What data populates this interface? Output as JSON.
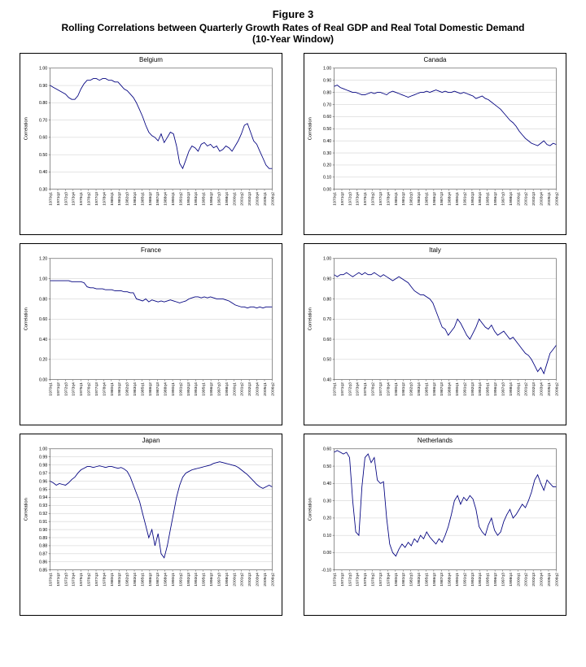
{
  "figure": {
    "title": "Figure 3",
    "subtitle": "Rolling Correlations between Quarterly Growth Rates of Real GDP and Real Total Domestic Demand",
    "window_note": "(10-Year Window)"
  },
  "colors": {
    "series_line": "#00007f",
    "gridline": "#c8c8c8",
    "plot_frame": "#404040"
  },
  "shared_axes": {
    "xlabel": "",
    "x_tick_labels": [
      "1970q1",
      "1971q2",
      "1972q3",
      "1973q4",
      "1975q1",
      "1976q2",
      "1977q3",
      "1978q4",
      "1980q1",
      "1981q2",
      "1982q3",
      "1983q4",
      "1985q1",
      "1986q2",
      "1987q3",
      "1988q4",
      "1990q1",
      "1991q2",
      "1992q3",
      "1993q4",
      "1995q1",
      "1996q2",
      "1997q3",
      "1998q4",
      "2000q1",
      "2001q2",
      "2002q3",
      "2003q4",
      "2005q1",
      "2006q2"
    ]
  },
  "chart_data": [
    {
      "type": "line",
      "title": "Belgium",
      "ylabel": "Correlation",
      "ylim": [
        0.3,
        1.0
      ],
      "ytick_step": 0.1,
      "grid": true,
      "values": [
        0.9,
        0.89,
        0.88,
        0.87,
        0.86,
        0.85,
        0.83,
        0.82,
        0.82,
        0.84,
        0.88,
        0.91,
        0.93,
        0.93,
        0.94,
        0.94,
        0.93,
        0.94,
        0.94,
        0.93,
        0.93,
        0.92,
        0.92,
        0.9,
        0.88,
        0.87,
        0.85,
        0.83,
        0.8,
        0.76,
        0.72,
        0.67,
        0.63,
        0.61,
        0.6,
        0.58,
        0.62,
        0.57,
        0.6,
        0.63,
        0.62,
        0.55,
        0.45,
        0.42,
        0.47,
        0.52,
        0.55,
        0.54,
        0.52,
        0.56,
        0.57,
        0.55,
        0.56,
        0.54,
        0.55,
        0.52,
        0.53,
        0.55,
        0.54,
        0.52,
        0.55,
        0.58,
        0.62,
        0.67,
        0.68,
        0.63,
        0.58,
        0.56,
        0.52,
        0.48,
        0.44,
        0.42,
        0.42
      ]
    },
    {
      "type": "line",
      "title": "Canada",
      "ylabel": "Correlation",
      "ylim": [
        0.0,
        1.0
      ],
      "ytick_step": 0.1,
      "grid": true,
      "values": [
        0.85,
        0.86,
        0.84,
        0.83,
        0.82,
        0.81,
        0.8,
        0.8,
        0.79,
        0.78,
        0.78,
        0.79,
        0.8,
        0.79,
        0.8,
        0.8,
        0.79,
        0.78,
        0.8,
        0.81,
        0.8,
        0.79,
        0.78,
        0.77,
        0.76,
        0.77,
        0.78,
        0.79,
        0.8,
        0.8,
        0.81,
        0.8,
        0.81,
        0.82,
        0.81,
        0.8,
        0.81,
        0.8,
        0.8,
        0.81,
        0.8,
        0.79,
        0.8,
        0.79,
        0.78,
        0.77,
        0.75,
        0.76,
        0.77,
        0.75,
        0.74,
        0.72,
        0.7,
        0.68,
        0.66,
        0.63,
        0.6,
        0.57,
        0.55,
        0.52,
        0.48,
        0.45,
        0.42,
        0.4,
        0.38,
        0.37,
        0.36,
        0.38,
        0.4,
        0.37,
        0.36,
        0.38,
        0.37
      ]
    },
    {
      "type": "line",
      "title": "France",
      "ylabel": "Correlation",
      "ylim": [
        0.0,
        1.2
      ],
      "ytick_step": 0.2,
      "grid": true,
      "values": [
        0.98,
        0.98,
        0.98,
        0.98,
        0.98,
        0.98,
        0.98,
        0.97,
        0.97,
        0.97,
        0.97,
        0.96,
        0.92,
        0.91,
        0.91,
        0.9,
        0.9,
        0.9,
        0.89,
        0.89,
        0.89,
        0.88,
        0.88,
        0.88,
        0.87,
        0.87,
        0.86,
        0.86,
        0.8,
        0.79,
        0.78,
        0.8,
        0.77,
        0.79,
        0.78,
        0.77,
        0.78,
        0.77,
        0.78,
        0.79,
        0.78,
        0.77,
        0.76,
        0.77,
        0.78,
        0.8,
        0.81,
        0.82,
        0.82,
        0.81,
        0.82,
        0.81,
        0.82,
        0.81,
        0.8,
        0.8,
        0.8,
        0.79,
        0.78,
        0.76,
        0.74,
        0.73,
        0.72,
        0.72,
        0.71,
        0.72,
        0.72,
        0.71,
        0.72,
        0.71,
        0.72,
        0.72,
        0.72
      ]
    },
    {
      "type": "line",
      "title": "Italy",
      "ylabel": "Correlation",
      "ylim": [
        0.4,
        1.0
      ],
      "ytick_step": 0.1,
      "grid": true,
      "values": [
        0.92,
        0.91,
        0.92,
        0.92,
        0.93,
        0.92,
        0.91,
        0.92,
        0.93,
        0.92,
        0.93,
        0.92,
        0.92,
        0.93,
        0.92,
        0.91,
        0.92,
        0.91,
        0.9,
        0.89,
        0.9,
        0.91,
        0.9,
        0.89,
        0.88,
        0.86,
        0.84,
        0.83,
        0.82,
        0.82,
        0.81,
        0.8,
        0.78,
        0.74,
        0.7,
        0.66,
        0.65,
        0.62,
        0.64,
        0.66,
        0.7,
        0.68,
        0.65,
        0.62,
        0.6,
        0.63,
        0.66,
        0.7,
        0.68,
        0.66,
        0.65,
        0.67,
        0.64,
        0.62,
        0.63,
        0.64,
        0.62,
        0.6,
        0.61,
        0.59,
        0.57,
        0.55,
        0.53,
        0.52,
        0.5,
        0.47,
        0.44,
        0.46,
        0.43,
        0.48,
        0.53,
        0.55,
        0.57
      ]
    },
    {
      "type": "line",
      "title": "Japan",
      "ylabel": "Correlation",
      "ylim": [
        0.85,
        1.0
      ],
      "ytick_step": 0.01,
      "grid": true,
      "values": [
        0.96,
        0.958,
        0.955,
        0.957,
        0.956,
        0.955,
        0.958,
        0.962,
        0.965,
        0.97,
        0.974,
        0.976,
        0.978,
        0.978,
        0.977,
        0.978,
        0.979,
        0.978,
        0.977,
        0.978,
        0.978,
        0.977,
        0.976,
        0.977,
        0.975,
        0.972,
        0.965,
        0.955,
        0.945,
        0.935,
        0.92,
        0.905,
        0.89,
        0.9,
        0.88,
        0.895,
        0.87,
        0.865,
        0.88,
        0.9,
        0.92,
        0.94,
        0.955,
        0.965,
        0.97,
        0.972,
        0.974,
        0.975,
        0.976,
        0.977,
        0.978,
        0.979,
        0.98,
        0.982,
        0.983,
        0.984,
        0.983,
        0.982,
        0.981,
        0.98,
        0.979,
        0.977,
        0.974,
        0.971,
        0.968,
        0.964,
        0.96,
        0.956,
        0.953,
        0.951,
        0.953,
        0.955,
        0.953
      ]
    },
    {
      "type": "line",
      "title": "Netherlands",
      "ylabel": "Correlation",
      "ylim": [
        -0.1,
        0.6
      ],
      "ytick_step": 0.1,
      "grid": true,
      "values": [
        0.58,
        0.59,
        0.58,
        0.57,
        0.58,
        0.55,
        0.3,
        0.12,
        0.1,
        0.38,
        0.55,
        0.57,
        0.52,
        0.55,
        0.42,
        0.4,
        0.41,
        0.2,
        0.05,
        0.0,
        -0.02,
        0.02,
        0.05,
        0.03,
        0.06,
        0.04,
        0.08,
        0.06,
        0.1,
        0.08,
        0.12,
        0.09,
        0.07,
        0.05,
        0.08,
        0.06,
        0.1,
        0.15,
        0.22,
        0.3,
        0.33,
        0.28,
        0.32,
        0.3,
        0.33,
        0.31,
        0.25,
        0.15,
        0.12,
        0.1,
        0.16,
        0.2,
        0.13,
        0.1,
        0.12,
        0.18,
        0.22,
        0.25,
        0.2,
        0.22,
        0.25,
        0.28,
        0.26,
        0.3,
        0.35,
        0.42,
        0.45,
        0.4,
        0.36,
        0.42,
        0.4,
        0.38,
        0.38
      ]
    }
  ]
}
